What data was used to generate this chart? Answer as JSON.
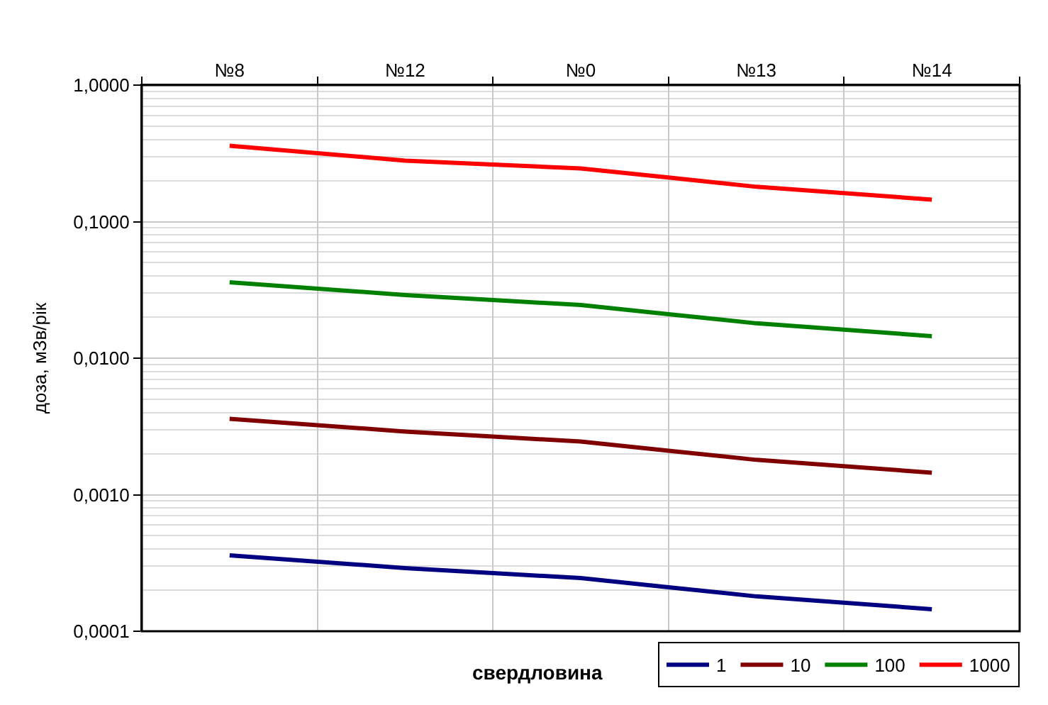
{
  "chart_data": {
    "type": "line",
    "xlabel": "свердловина",
    "ylabel": "доза, мЗв/рік",
    "categories": [
      "№8",
      "№12",
      "№0",
      "№13",
      "№14"
    ],
    "series": [
      {
        "name": "1",
        "color": "#000080",
        "values": [
          0.00036,
          0.00029,
          0.000245,
          0.00018,
          0.000145
        ]
      },
      {
        "name": "10",
        "color": "#800000",
        "values": [
          0.0036,
          0.0029,
          0.00245,
          0.0018,
          0.00145
        ]
      },
      {
        "name": "100",
        "color": "#008000",
        "values": [
          0.036,
          0.029,
          0.0245,
          0.018,
          0.0145
        ]
      },
      {
        "name": "1000",
        "color": "#ff0000",
        "values": [
          0.36,
          0.28,
          0.245,
          0.18,
          0.145
        ]
      }
    ],
    "log": "y",
    "ylim": [
      0.0001,
      1
    ],
    "yticks": [
      {
        "value": 0.0001,
        "label": "0,0001"
      },
      {
        "value": 0.001,
        "label": "0,0010"
      },
      {
        "value": 0.01,
        "label": "0,0100"
      },
      {
        "value": 0.1,
        "label": "0,1000"
      },
      {
        "value": 1,
        "label": "1,0000"
      }
    ],
    "grid": true,
    "legend": "bottom right",
    "marker": "none",
    "line_style": "solid"
  }
}
